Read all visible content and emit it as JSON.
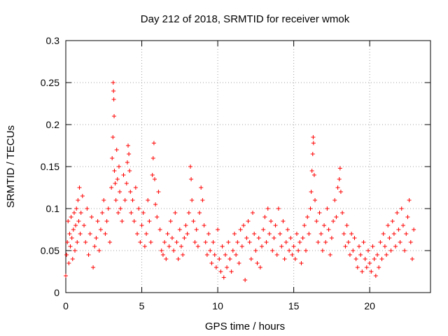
{
  "chart_data": {
    "type": "scatter",
    "title": "Day 212 of 2018, SRMTID for receiver wmok",
    "xlabel": "GPS time / hours",
    "ylabel": "SRMTID / TECUs",
    "xlim": [
      0,
      24
    ],
    "ylim": [
      0,
      0.3
    ],
    "xticks": [
      0,
      5,
      10,
      15,
      20
    ],
    "yticks": [
      0,
      0.05,
      0.1,
      0.15,
      0.2,
      0.25,
      0.3
    ],
    "xtick_labels": [
      "0",
      "5",
      "10",
      "15",
      "20"
    ],
    "ytick_labels": [
      "0",
      "0.05",
      "0.1",
      "0.15",
      "0.2",
      "0.25",
      "0.3"
    ],
    "grid": true,
    "marker": "+",
    "color": "#ff0000",
    "series": [
      {
        "name": "SRMTID",
        "points": [
          [
            0.0,
            0.02
          ],
          [
            0.05,
            0.045
          ],
          [
            0.1,
            0.06
          ],
          [
            0.15,
            0.085
          ],
          [
            0.2,
            0.035
          ],
          [
            0.25,
            0.07
          ],
          [
            0.3,
            0.055
          ],
          [
            0.35,
            0.09
          ],
          [
            0.4,
            0.065
          ],
          [
            0.45,
            0.04
          ],
          [
            0.5,
            0.075
          ],
          [
            0.55,
            0.095
          ],
          [
            0.6,
            0.05
          ],
          [
            0.65,
            0.08
          ],
          [
            0.7,
            0.1
          ],
          [
            0.75,
            0.06
          ],
          [
            0.8,
            0.11
          ],
          [
            0.85,
            0.085
          ],
          [
            0.9,
            0.125
          ],
          [
            0.95,
            0.07
          ],
          [
            1.0,
            0.095
          ],
          [
            1.1,
            0.115
          ],
          [
            1.2,
            0.08
          ],
          [
            1.3,
            0.06
          ],
          [
            1.4,
            0.1
          ],
          [
            1.5,
            0.045
          ],
          [
            1.6,
            0.07
          ],
          [
            1.7,
            0.09
          ],
          [
            1.8,
            0.03
          ],
          [
            1.9,
            0.055
          ],
          [
            2.0,
            0.065
          ],
          [
            2.1,
            0.085
          ],
          [
            2.2,
            0.05
          ],
          [
            2.3,
            0.075
          ],
          [
            2.4,
            0.095
          ],
          [
            2.5,
            0.11
          ],
          [
            2.6,
            0.07
          ],
          [
            2.7,
            0.085
          ],
          [
            2.8,
            0.1
          ],
          [
            2.9,
            0.06
          ],
          [
            3.0,
            0.125
          ],
          [
            3.05,
            0.16
          ],
          [
            3.1,
            0.185
          ],
          [
            3.12,
            0.25
          ],
          [
            3.14,
            0.24
          ],
          [
            3.16,
            0.23
          ],
          [
            3.18,
            0.21
          ],
          [
            3.2,
            0.145
          ],
          [
            3.25,
            0.13
          ],
          [
            3.3,
            0.11
          ],
          [
            3.35,
            0.17
          ],
          [
            3.4,
            0.135
          ],
          [
            3.45,
            0.095
          ],
          [
            3.5,
            0.15
          ],
          [
            3.55,
            0.12
          ],
          [
            3.6,
            0.1
          ],
          [
            3.7,
            0.085
          ],
          [
            3.8,
            0.14
          ],
          [
            3.9,
            0.11
          ],
          [
            4.0,
            0.13
          ],
          [
            4.05,
            0.155
          ],
          [
            4.1,
            0.175
          ],
          [
            4.15,
            0.165
          ],
          [
            4.2,
            0.145
          ],
          [
            4.25,
            0.12
          ],
          [
            4.3,
            0.095
          ],
          [
            4.4,
            0.11
          ],
          [
            4.5,
            0.085
          ],
          [
            4.6,
            0.125
          ],
          [
            4.7,
            0.07
          ],
          [
            4.8,
            0.1
          ],
          [
            4.9,
            0.06
          ],
          [
            5.0,
            0.08
          ],
          [
            5.1,
            0.095
          ],
          [
            5.2,
            0.055
          ],
          [
            5.3,
            0.07
          ],
          [
            5.4,
            0.11
          ],
          [
            5.5,
            0.085
          ],
          [
            5.6,
            0.06
          ],
          [
            5.7,
            0.14
          ],
          [
            5.75,
            0.16
          ],
          [
            5.8,
            0.178
          ],
          [
            5.85,
            0.135
          ],
          [
            5.9,
            0.105
          ],
          [
            6.0,
            0.09
          ],
          [
            6.1,
            0.12
          ],
          [
            6.2,
            0.075
          ],
          [
            6.3,
            0.05
          ],
          [
            6.4,
            0.045
          ],
          [
            6.5,
            0.06
          ],
          [
            6.6,
            0.04
          ],
          [
            6.7,
            0.07
          ],
          [
            6.8,
            0.055
          ],
          [
            6.9,
            0.085
          ],
          [
            7.0,
            0.065
          ],
          [
            7.1,
            0.05
          ],
          [
            7.2,
            0.095
          ],
          [
            7.3,
            0.06
          ],
          [
            7.4,
            0.04
          ],
          [
            7.5,
            0.075
          ],
          [
            7.6,
            0.055
          ],
          [
            7.7,
            0.045
          ],
          [
            7.8,
            0.065
          ],
          [
            7.9,
            0.08
          ],
          [
            8.0,
            0.07
          ],
          [
            8.1,
            0.095
          ],
          [
            8.2,
            0.15
          ],
          [
            8.25,
            0.135
          ],
          [
            8.3,
            0.11
          ],
          [
            8.4,
            0.085
          ],
          [
            8.5,
            0.06
          ],
          [
            8.6,
            0.075
          ],
          [
            8.7,
            0.055
          ],
          [
            8.8,
            0.095
          ],
          [
            8.9,
            0.125
          ],
          [
            9.0,
            0.11
          ],
          [
            9.1,
            0.08
          ],
          [
            9.2,
            0.06
          ],
          [
            9.3,
            0.045
          ],
          [
            9.4,
            0.07
          ],
          [
            9.5,
            0.05
          ],
          [
            9.6,
            0.035
          ],
          [
            9.7,
            0.06
          ],
          [
            9.8,
            0.045
          ],
          [
            9.9,
            0.03
          ],
          [
            10.0,
            0.075
          ],
          [
            10.1,
            0.04
          ],
          [
            10.2,
            0.025
          ],
          [
            10.3,
            0.055
          ],
          [
            10.4,
            0.018
          ],
          [
            10.5,
            0.045
          ],
          [
            10.6,
            0.03
          ],
          [
            10.7,
            0.06
          ],
          [
            10.8,
            0.04
          ],
          [
            10.9,
            0.025
          ],
          [
            11.0,
            0.05
          ],
          [
            11.1,
            0.07
          ],
          [
            11.2,
            0.045
          ],
          [
            11.3,
            0.06
          ],
          [
            11.4,
            0.035
          ],
          [
            11.5,
            0.075
          ],
          [
            11.6,
            0.055
          ],
          [
            11.7,
            0.08
          ],
          [
            11.8,
            0.015
          ],
          [
            11.9,
            0.065
          ],
          [
            12.0,
            0.085
          ],
          [
            12.1,
            0.06
          ],
          [
            12.2,
            0.04
          ],
          [
            12.3,
            0.095
          ],
          [
            12.4,
            0.07
          ],
          [
            12.5,
            0.05
          ],
          [
            12.6,
            0.035
          ],
          [
            12.7,
            0.065
          ],
          [
            12.8,
            0.03
          ],
          [
            12.9,
            0.055
          ],
          [
            13.0,
            0.075
          ],
          [
            13.1,
            0.09
          ],
          [
            13.2,
            0.06
          ],
          [
            13.3,
            0.1
          ],
          [
            13.4,
            0.07
          ],
          [
            13.5,
            0.085
          ],
          [
            13.6,
            0.05
          ],
          [
            13.7,
            0.065
          ],
          [
            13.8,
            0.08
          ],
          [
            13.9,
            0.045
          ],
          [
            14.0,
            0.1
          ],
          [
            14.1,
            0.07
          ],
          [
            14.2,
            0.055
          ],
          [
            14.3,
            0.085
          ],
          [
            14.4,
            0.04
          ],
          [
            14.5,
            0.06
          ],
          [
            14.6,
            0.075
          ],
          [
            14.7,
            0.05
          ],
          [
            14.8,
            0.065
          ],
          [
            14.9,
            0.045
          ],
          [
            15.0,
            0.055
          ],
          [
            15.1,
            0.04
          ],
          [
            15.2,
            0.07
          ],
          [
            15.3,
            0.05
          ],
          [
            15.4,
            0.06
          ],
          [
            15.5,
            0.035
          ],
          [
            15.6,
            0.065
          ],
          [
            15.7,
            0.08
          ],
          [
            15.8,
            0.05
          ],
          [
            15.9,
            0.09
          ],
          [
            16.0,
            0.07
          ],
          [
            16.1,
            0.1
          ],
          [
            16.15,
            0.12
          ],
          [
            16.2,
            0.145
          ],
          [
            16.25,
            0.165
          ],
          [
            16.28,
            0.185
          ],
          [
            16.3,
            0.178
          ],
          [
            16.35,
            0.14
          ],
          [
            16.4,
            0.11
          ],
          [
            16.5,
            0.085
          ],
          [
            16.6,
            0.06
          ],
          [
            16.7,
            0.095
          ],
          [
            16.8,
            0.07
          ],
          [
            16.9,
            0.05
          ],
          [
            17.0,
            0.08
          ],
          [
            17.1,
            0.06
          ],
          [
            17.2,
            0.1
          ],
          [
            17.3,
            0.075
          ],
          [
            17.4,
            0.045
          ],
          [
            17.5,
            0.065
          ],
          [
            17.6,
            0.085
          ],
          [
            17.7,
            0.11
          ],
          [
            17.8,
            0.09
          ],
          [
            17.9,
            0.125
          ],
          [
            18.0,
            0.135
          ],
          [
            18.05,
            0.148
          ],
          [
            18.1,
            0.12
          ],
          [
            18.2,
            0.095
          ],
          [
            18.3,
            0.07
          ],
          [
            18.4,
            0.055
          ],
          [
            18.5,
            0.08
          ],
          [
            18.6,
            0.06
          ],
          [
            18.7,
            0.045
          ],
          [
            18.8,
            0.07
          ],
          [
            18.9,
            0.05
          ],
          [
            19.0,
            0.065
          ],
          [
            19.1,
            0.04
          ],
          [
            19.2,
            0.03
          ],
          [
            19.3,
            0.055
          ],
          [
            19.4,
            0.045
          ],
          [
            19.5,
            0.025
          ],
          [
            19.6,
            0.06
          ],
          [
            19.7,
            0.04
          ],
          [
            19.8,
            0.03
          ],
          [
            19.9,
            0.05
          ],
          [
            20.0,
            0.035
          ],
          [
            20.1,
            0.025
          ],
          [
            20.2,
            0.055
          ],
          [
            20.3,
            0.04
          ],
          [
            20.4,
            0.02
          ],
          [
            20.5,
            0.045
          ],
          [
            20.6,
            0.03
          ],
          [
            20.7,
            0.06
          ],
          [
            20.8,
            0.04
          ],
          [
            20.9,
            0.07
          ],
          [
            21.0,
            0.055
          ],
          [
            21.1,
            0.045
          ],
          [
            21.2,
            0.08
          ],
          [
            21.3,
            0.065
          ],
          [
            21.4,
            0.05
          ],
          [
            21.5,
            0.085
          ],
          [
            21.6,
            0.07
          ],
          [
            21.7,
            0.055
          ],
          [
            21.8,
            0.095
          ],
          [
            21.9,
            0.075
          ],
          [
            22.0,
            0.06
          ],
          [
            22.1,
            0.1
          ],
          [
            22.2,
            0.08
          ],
          [
            22.3,
            0.05
          ],
          [
            22.4,
            0.07
          ],
          [
            22.5,
            0.09
          ],
          [
            22.6,
            0.11
          ],
          [
            22.7,
            0.06
          ],
          [
            22.8,
            0.04
          ],
          [
            22.9,
            0.075
          ]
        ]
      }
    ]
  }
}
